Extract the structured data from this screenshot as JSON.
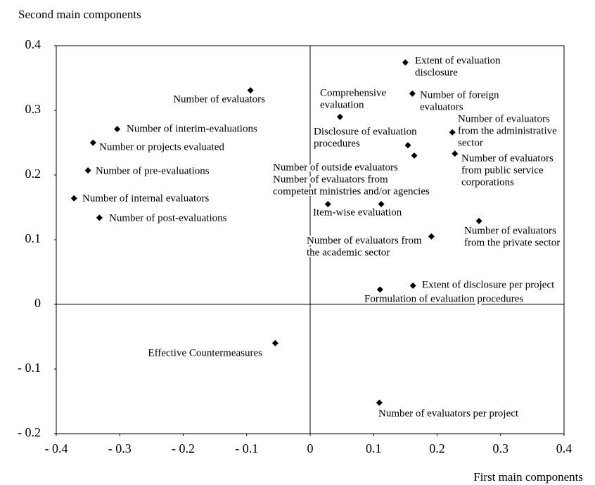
{
  "chart_data": {
    "type": "scatter",
    "ylabel": "Second main components",
    "xlabel": "First main components",
    "color": "#000000",
    "xlim": [
      -0.4,
      0.4
    ],
    "xticks": [
      {
        "value": -0.4,
        "label": "- 0.4"
      },
      {
        "value": -0.3,
        "label": "- 0.3"
      },
      {
        "value": -0.2,
        "label": "- 0.2"
      },
      {
        "value": -0.1,
        "label": "- 0.1"
      },
      0,
      0.1,
      0.2,
      0.3,
      0.4
    ],
    "ylim": [
      -0.2,
      0.4
    ],
    "yticks": [
      {
        "value": -0.2,
        "label": "- 0.2"
      },
      {
        "value": -0.1,
        "label": "- 0.1"
      },
      0,
      0.1,
      0.2,
      0.3,
      0.4
    ],
    "x": [
      0.15,
      -0.094,
      0.047,
      0.161,
      -0.304,
      -0.342,
      0.154,
      0.224,
      0.164,
      0.228,
      -0.35,
      -0.372,
      0.028,
      0.112,
      -0.332,
      0.266,
      0.191,
      0.162,
      0.11,
      -0.055,
      0.109
    ],
    "values": [
      0.374,
      0.331,
      0.29,
      0.326,
      0.271,
      0.25,
      0.246,
      0.266,
      0.23,
      0.233,
      0.207,
      0.164,
      0.155,
      0.155,
      0.134,
      0.129,
      0.105,
      0.029,
      0.023,
      -0.06,
      -0.152
    ],
    "labels": [
      [
        "Extent of evaluation",
        "disclosure"
      ],
      [
        "Number of evaluators"
      ],
      [
        "Comprehensive",
        "evaluation"
      ],
      [
        "Number of foreign",
        "evaluators"
      ],
      [
        "Number of interim-evaluations"
      ],
      [
        "Number or projects evaluated"
      ],
      [
        "Disclosure of evaluation",
        "procedures"
      ],
      [
        "Number of evaluators",
        "from the administrative",
        "sector"
      ],
      [
        "Number of outside evaluators"
      ],
      [
        "Number of evaluators",
        "from public service",
        "corporations"
      ],
      [
        "Number of pre-evaluations"
      ],
      [
        "Number of internal evaluators"
      ],
      [
        "Item-wise evaluation"
      ],
      [
        "Number of evaluators from",
        "competent ministries and/or agencies"
      ],
      [
        "Number of post-evaluations"
      ],
      [
        "Number of evaluators",
        "from the private sector"
      ],
      [
        "Number of evaluators from",
        "the academic sector"
      ],
      [
        "Extent of disclosure per project"
      ],
      [
        "Formulation of evaluation procedures"
      ],
      [
        "Effective Countermeasures"
      ],
      [
        "Number of evaluators per project"
      ]
    ]
  }
}
